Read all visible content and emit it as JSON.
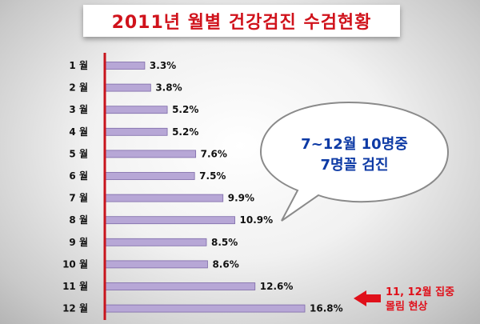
{
  "title": "2011년 월별 건강검진 수검현황",
  "callout": {
    "line1": "7~12월 10명중",
    "line2": "7명꼴 검진"
  },
  "annotation": {
    "line1": "11, 12월 집중",
    "line2": "몰림 현상"
  },
  "colors": {
    "title": "#d0121b",
    "bar": "#b7a7d6",
    "bar_edge": "#7d6aa8",
    "axis": "#c8141c",
    "callout_text": "#0d3aa5",
    "annotation": "#e0101a"
  },
  "chart_data": {
    "type": "bar",
    "orientation": "horizontal",
    "categories": [
      "1 월",
      "2 월",
      "3 월",
      "4 월",
      "5 월",
      "6 월",
      "7 월",
      "8 월",
      "9 월",
      "10 월",
      "11 월",
      "12 월"
    ],
    "values": [
      3.3,
      3.8,
      5.2,
      5.2,
      7.6,
      7.5,
      9.9,
      10.9,
      8.5,
      8.6,
      12.6,
      16.8
    ],
    "value_labels": [
      "3.3%",
      "3.8%",
      "5.2%",
      "5.2%",
      "7.6%",
      "7.5%",
      "9.9%",
      "10.9%",
      "8.5%",
      "8.6%",
      "12.6%",
      "16.8%"
    ],
    "title": "2011년 월별 건강검진 수검현황",
    "xlim": [
      0,
      16.8
    ],
    "grid": false,
    "legend": "none"
  }
}
